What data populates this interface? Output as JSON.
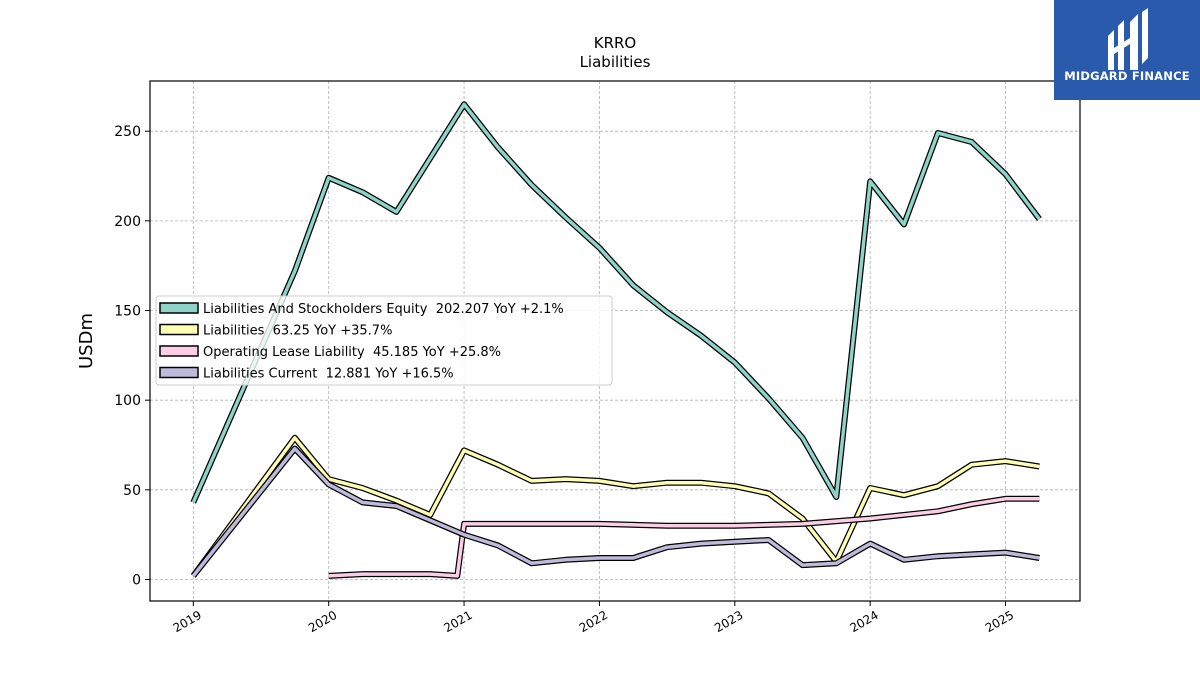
{
  "brand": {
    "name": "MIDGARD FINANCE",
    "bg_color": "#2a5aac"
  },
  "chart_data": {
    "type": "line",
    "title": "KRRO",
    "subtitle": "Liabilities",
    "ylabel": "USDm",
    "xlabel": "",
    "ylim": [
      -12,
      278
    ],
    "xlim": [
      2018.68,
      2025.55
    ],
    "yticks": [
      0,
      50,
      100,
      150,
      200,
      250
    ],
    "xticks": [
      "2019",
      "2020",
      "2021",
      "2022",
      "2023",
      "2024",
      "2025"
    ],
    "grid": true,
    "legend_position": "center-left",
    "series": [
      {
        "name": "Liabilities And Stockholders Equity",
        "legend": "Liabilities And Stockholders Equity  202.207 YoY +2.1%",
        "color": "#8dd3c7",
        "points": [
          [
            2019.0,
            43
          ],
          [
            2019.75,
            172
          ],
          [
            2020.0,
            224
          ],
          [
            2020.25,
            216
          ],
          [
            2020.5,
            205
          ],
          [
            2021.0,
            265
          ],
          [
            2021.25,
            241
          ],
          [
            2021.5,
            220
          ],
          [
            2021.75,
            202
          ],
          [
            2022.0,
            185
          ],
          [
            2022.25,
            164
          ],
          [
            2022.5,
            149
          ],
          [
            2022.75,
            136
          ],
          [
            2023.0,
            121
          ],
          [
            2023.25,
            101
          ],
          [
            2023.5,
            79
          ],
          [
            2023.75,
            46
          ],
          [
            2024.0,
            222
          ],
          [
            2024.25,
            198
          ],
          [
            2024.5,
            249
          ],
          [
            2024.75,
            244
          ],
          [
            2025.0,
            226
          ],
          [
            2025.25,
            201
          ]
        ]
      },
      {
        "name": "Liabilities",
        "legend": "Liabilities  63.25 YoY +35.7%",
        "color": "#ffffb3",
        "points": [
          [
            2019.0,
            2
          ],
          [
            2019.75,
            79
          ],
          [
            2020.0,
            56
          ],
          [
            2020.25,
            51
          ],
          [
            2020.5,
            44
          ],
          [
            2020.75,
            36
          ],
          [
            2021.0,
            72
          ],
          [
            2021.25,
            64
          ],
          [
            2021.5,
            55
          ],
          [
            2021.75,
            56
          ],
          [
            2022.0,
            55
          ],
          [
            2022.25,
            52
          ],
          [
            2022.5,
            54
          ],
          [
            2022.75,
            54
          ],
          [
            2023.0,
            52
          ],
          [
            2023.25,
            48
          ],
          [
            2023.5,
            34
          ],
          [
            2023.75,
            10
          ],
          [
            2024.0,
            51
          ],
          [
            2024.25,
            47
          ],
          [
            2024.5,
            52
          ],
          [
            2024.75,
            64
          ],
          [
            2025.0,
            66
          ],
          [
            2025.25,
            63
          ]
        ]
      },
      {
        "name": "Operating Lease Liability",
        "legend": "Operating Lease Liability  45.185 YoY +25.8%",
        "color": "#fccde5",
        "points": [
          [
            2020.0,
            2
          ],
          [
            2020.25,
            3
          ],
          [
            2020.5,
            3
          ],
          [
            2020.75,
            3
          ],
          [
            2020.95,
            2
          ],
          [
            2021.0,
            31
          ],
          [
            2021.5,
            31
          ],
          [
            2022.0,
            31
          ],
          [
            2022.5,
            30
          ],
          [
            2023.0,
            30
          ],
          [
            2023.5,
            31
          ],
          [
            2024.0,
            34
          ],
          [
            2024.5,
            38
          ],
          [
            2024.75,
            42
          ],
          [
            2025.0,
            45
          ],
          [
            2025.25,
            45
          ]
        ]
      },
      {
        "name": "Liabilities Current",
        "legend": "Liabilities Current  12.881 YoY +16.5%",
        "color": "#bebada",
        "points": [
          [
            2019.0,
            2
          ],
          [
            2019.75,
            73
          ],
          [
            2020.0,
            53
          ],
          [
            2020.25,
            43
          ],
          [
            2020.5,
            41
          ],
          [
            2020.75,
            33
          ],
          [
            2021.0,
            25
          ],
          [
            2021.25,
            19
          ],
          [
            2021.5,
            9
          ],
          [
            2021.75,
            11
          ],
          [
            2022.0,
            12
          ],
          [
            2022.25,
            12
          ],
          [
            2022.5,
            18
          ],
          [
            2022.75,
            20
          ],
          [
            2023.0,
            21
          ],
          [
            2023.25,
            22
          ],
          [
            2023.5,
            8
          ],
          [
            2023.75,
            9
          ],
          [
            2024.0,
            20
          ],
          [
            2024.25,
            11
          ],
          [
            2024.5,
            13
          ],
          [
            2024.75,
            14
          ],
          [
            2025.0,
            15
          ],
          [
            2025.25,
            12
          ]
        ]
      }
    ]
  }
}
